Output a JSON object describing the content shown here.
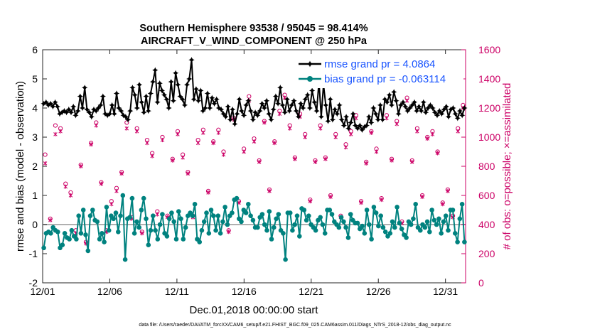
{
  "chart_data": {
    "type": "line",
    "title": "Southern Hemisphere 93538 / 95045 = 98.414%",
    "subtitle": "AIRCRAFT_V_WIND_COMPONENT @ 250 hPa",
    "xlabel": "Dec.01,2018 00:00:00 start",
    "ylabel": "rmse and bias (model - observation)",
    "ylabel_right": "# of obs: o=possible; ×=assimilated",
    "x_ticks": [
      "12/01",
      "12/06",
      "12/11",
      "12/16",
      "12/21",
      "12/26",
      "12/31"
    ],
    "x_tick_days": [
      0,
      5,
      10,
      15,
      20,
      25,
      30
    ],
    "x_range_days": [
      0,
      31.5
    ],
    "y_ticks": [
      "-2",
      "-1",
      "0",
      "1",
      "2",
      "3",
      "4",
      "5",
      "6"
    ],
    "y_range": [
      -2,
      6
    ],
    "y2_ticks": [
      "0",
      "200",
      "400",
      "600",
      "800",
      "1000",
      "1200",
      "1400",
      "1600"
    ],
    "y2_range": [
      0,
      1600
    ],
    "footnote": "data file: /Users/raeder/DAI/ATM_forcXX/CAM6_setup/f.e21.FHIST_BGC.f09_025.CAM6assim.011/Diags_NTrS_2018-12/obs_diag_output.nc",
    "legend_position": "top-right",
    "colors": {
      "rmse": "#000000",
      "bias": "#00827f",
      "obs": "#cc0066",
      "zero_line": "#b0b0b0",
      "legend_text": "#1a55ff"
    },
    "series": [
      {
        "name": "rmse grand pr = 4.0864",
        "axis": "left",
        "values": [
          4.15,
          4.2,
          4.1,
          4.15,
          4.05,
          4.2,
          4.05,
          3.8,
          3.85,
          3.9,
          3.85,
          3.95,
          3.85,
          4.05,
          3.75,
          3.9,
          4.4,
          4.0,
          4.7,
          3.95,
          3.85,
          3.7,
          3.95,
          3.9,
          4.0,
          4.1,
          4.4,
          3.8,
          3.75,
          3.8,
          4.1,
          3.8,
          4.5,
          4.0,
          3.9,
          3.75,
          3.7,
          3.6,
          3.9,
          4.7,
          4.45,
          4.0,
          4.8,
          4.2,
          3.85,
          4.4,
          3.9,
          4.5,
          4.9,
          5.3,
          4.2,
          4.85,
          4.6,
          4.45,
          4.3,
          4.0,
          4.9,
          4.25,
          5.2,
          4.8,
          4.4,
          4.3,
          4.1,
          4.8,
          5.0,
          5.65,
          4.3,
          4.65,
          4.25,
          4.6,
          3.9,
          4.0,
          4.5,
          4.0,
          4.35,
          4.15,
          4.3,
          4.0,
          3.95,
          3.8,
          3.7,
          4.05,
          3.6,
          3.95,
          3.45,
          3.8,
          4.3,
          3.9,
          3.75,
          4.1,
          4.25,
          3.9,
          3.6,
          3.85,
          3.75,
          3.9,
          4.15,
          4.0,
          4.25,
          3.8,
          3.6,
          3.95,
          4.4,
          4.15,
          4.7,
          4.1,
          3.85,
          4.3,
          3.9,
          4.1,
          4.25,
          3.9,
          3.7,
          4.15,
          4.0,
          4.3,
          4.45,
          4.0,
          4.6,
          4.2,
          3.9,
          4.9,
          3.7,
          4.8,
          4.1,
          3.55,
          4.3,
          3.6,
          3.95,
          3.8,
          4.1,
          3.6,
          3.4,
          3.7,
          3.3,
          3.5,
          3.8,
          3.4,
          3.3,
          3.4,
          3.25,
          3.35,
          3.4,
          3.7,
          3.5,
          4.0,
          3.8,
          3.6,
          4.1,
          3.6,
          4.3,
          4.2,
          4.45,
          4.1,
          4.55,
          4.25,
          3.8,
          4.1,
          4.2,
          4.05,
          3.9,
          4.0,
          4.1,
          4.2,
          3.9,
          4.05,
          3.9,
          4.2,
          3.85,
          4.0,
          4.1,
          4.0,
          3.85,
          3.75,
          3.9,
          3.8,
          3.95,
          4.05,
          3.7,
          3.95,
          4.0,
          3.8,
          3.65,
          3.9,
          3.75,
          4.0
        ]
      },
      {
        "name": "bias grand pr = -0.063114",
        "axis": "left",
        "values": [
          -0.8,
          -0.3,
          -0.25,
          -0.3,
          -0.1,
          -0.2,
          -0.25,
          -0.8,
          -0.7,
          -0.3,
          -0.45,
          -0.5,
          -0.2,
          -0.4,
          -0.5,
          0.3,
          -0.3,
          0.5,
          -0.35,
          -0.9,
          0.3,
          0.5,
          0.15,
          0.1,
          -0.5,
          -0.3,
          -0.6,
          0.6,
          -0.2,
          0.3,
          0.2,
          0.4,
          -0.25,
          0.3,
          1.0,
          -1.2,
          0.2,
          0.25,
          0.9,
          -0.3,
          0.1,
          -0.1,
          0.5,
          0.9,
          0.2,
          -0.7,
          -0.2,
          0.3,
          -0.2,
          -0.5,
          0.0,
          0.35,
          -0.3,
          -0.4,
          0.2,
          0.4,
          0.1,
          -0.5,
          0.45,
          0.2,
          -0.5,
          -0.1,
          0.3,
          0.4,
          0.3,
          0.7,
          -0.5,
          -0.6,
          -0.2,
          0.1,
          0.4,
          -0.3,
          0.5,
          0.3,
          -0.2,
          0.3,
          -0.3,
          0.1,
          0.6,
          0.0,
          0.3,
          0.4,
          0.85,
          0.9,
          0.2,
          0.1,
          0.5,
          0.4,
          0.7,
          0.3,
          0.15,
          -0.1,
          -0.1,
          0.25,
          0.35,
          0.0,
          -0.2,
          0.45,
          -0.5,
          -0.1,
          0.2,
          0.35,
          -0.2,
          -0.3,
          -1.2,
          0.4,
          0.4,
          -0.2,
          0.0,
          0.3,
          -0.4,
          0.55,
          0.5,
          0.15,
          0.3,
          0.0,
          -0.1,
          -0.2,
          0.15,
          0.25,
          0.0,
          -0.3,
          0.5,
          0.5,
          0.35,
          0.1,
          0.0,
          -0.1,
          0.25,
          0.1,
          -0.1,
          -0.45,
          0.35,
          0.15,
          0.05,
          0.05,
          -0.15,
          -0.05,
          -0.3,
          0.5,
          0.0,
          -0.5,
          0.6,
          0.4,
          -0.05,
          0.3,
          -0.1,
          -0.25,
          -0.4,
          -0.3,
          0.1,
          -0.1,
          0.6,
          0.05,
          -0.15,
          -0.35,
          -0.45,
          0.1,
          0.0,
          0.2,
          0.7,
          -0.1,
          -0.2,
          0.0,
          -0.1,
          0.1,
          -0.25,
          0.5,
          0.15,
          0.0,
          0.2,
          -0.3,
          0.1,
          0.3,
          -0.2,
          0.5,
          0.5,
          -0.3,
          -0.6,
          0.2,
          0.7,
          -0.6
        ]
      },
      {
        "name": "# of obs possible",
        "axis": "right",
        "marker": "o",
        "values": [
          880,
          440,
          1080,
          1060,
          680,
          620,
          360,
          810,
          280,
          960,
          1100,
          690,
          360,
          560,
          650,
          760,
          1100,
          450,
          1060,
          350,
          980,
          890,
          490,
          1000,
          460,
          850,
          1040,
          880,
          760,
          460,
          980,
          1050,
          630,
          970,
          1050,
          900,
          360,
          1130,
          560,
          920,
          1280,
          990,
          840,
          1110,
          640,
          970,
          1180,
          1290,
          1080,
          860,
          1160,
          1020,
          570,
          840,
          1080,
          860,
          600,
          1020,
          460,
          950,
          1040,
          1150,
          560,
          830,
          1040,
          920,
          580,
          1150,
          850,
          1110,
          420,
          1270,
          840,
          1060,
          600,
          1000,
          1040,
          900,
          550,
          640,
          460,
          1060,
          1220
        ]
      },
      {
        "name": "# of obs assimilated",
        "axis": "right",
        "marker": "x",
        "values": [
          820,
          430,
          1020,
          1040,
          660,
          600,
          340,
          800,
          270,
          950,
          1080,
          680,
          350,
          540,
          630,
          750,
          1060,
          440,
          1040,
          340,
          960,
          870,
          470,
          980,
          450,
          840,
          1020,
          860,
          750,
          450,
          960,
          1030,
          620,
          960,
          1030,
          880,
          350,
          1120,
          550,
          900,
          1250,
          970,
          830,
          1100,
          630,
          960,
          1160,
          1270,
          1060,
          850,
          1140,
          1000,
          560,
          830,
          1060,
          850,
          590,
          1000,
          450,
          930,
          1020,
          1130,
          550,
          820,
          1030,
          900,
          570,
          1130,
          840,
          1090,
          410,
          1250,
          830,
          1040,
          590,
          990,
          1020,
          890,
          540,
          630,
          450,
          1040,
          1200
        ]
      }
    ]
  }
}
